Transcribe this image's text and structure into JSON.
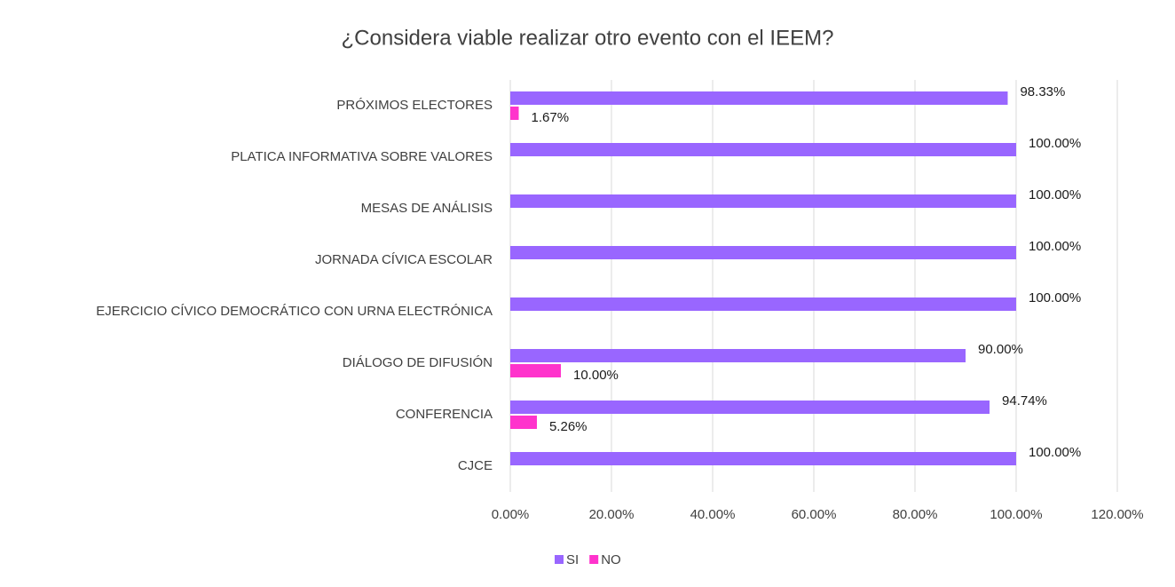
{
  "chart_data": {
    "type": "hbar",
    "title": "¿Considera viable realizar otro evento con el IEEM?",
    "categories": [
      "PRÓXIMOS ELECTORES",
      "PLATICA INFORMATIVA SOBRE VALORES",
      "MESAS DE ANÁLISIS",
      "JORNADA CÍVICA ESCOLAR",
      "EJERCICIO CÍVICO DEMOCRÁTICO CON URNA ELECTRÓNICA",
      "DIÁLOGO DE DIFUSIÓN",
      "CONFERENCIA",
      "CJCE"
    ],
    "series": [
      {
        "name": "SI",
        "color": "#9966ff",
        "values": [
          98.33,
          100,
          100,
          100,
          100,
          90,
          94.74,
          100
        ],
        "value_labels": [
          "98.33%",
          "100.00%",
          "100.00%",
          "100.00%",
          "100.00%",
          "90.00%",
          "94.74%",
          "100.00%"
        ]
      },
      {
        "name": "NO",
        "color": "#ff33cc",
        "values": [
          1.67,
          null,
          null,
          null,
          null,
          10,
          5.26,
          null
        ],
        "value_labels": [
          "1.67%",
          null,
          null,
          null,
          null,
          "10.00%",
          "5.26%",
          null
        ]
      }
    ],
    "xlim": [
      0,
      120
    ],
    "xticks": [
      {
        "value": 0,
        "label": "0.00%"
      },
      {
        "value": 20,
        "label": "20.00%"
      },
      {
        "value": 40,
        "label": "40.00%"
      },
      {
        "value": 60,
        "label": "60.00%"
      },
      {
        "value": 80,
        "label": "80.00%"
      },
      {
        "value": 100,
        "label": "100.00%"
      },
      {
        "value": 120,
        "label": "120.00%"
      }
    ],
    "grid": true,
    "legend": "bottom"
  }
}
